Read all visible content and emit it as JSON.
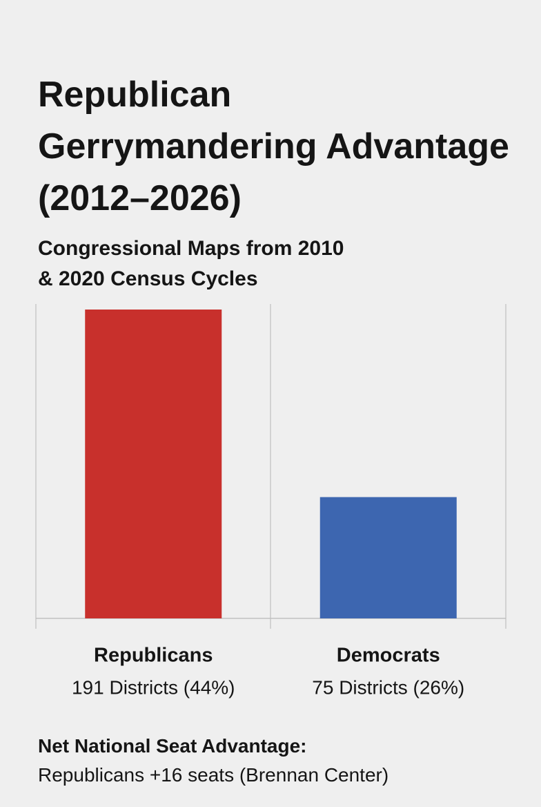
{
  "chart_data": {
    "type": "bar",
    "title": "Republican Gerrymandering Advantage (2012–2026)",
    "subtitle": "Congressional Maps from 2010 & 2020 Census Cycles",
    "categories": [
      "Republicans",
      "Democrats"
    ],
    "values": [
      191,
      75
    ],
    "value_labels": [
      "191 Districts (44%)",
      "75 Districts (26%)"
    ],
    "colors": [
      "#c8302c",
      "#3d66b0"
    ],
    "footnote_title": "Net National Seat Advantage:",
    "footnote_text": "Republicans +16 seats (Brennan Center)"
  }
}
